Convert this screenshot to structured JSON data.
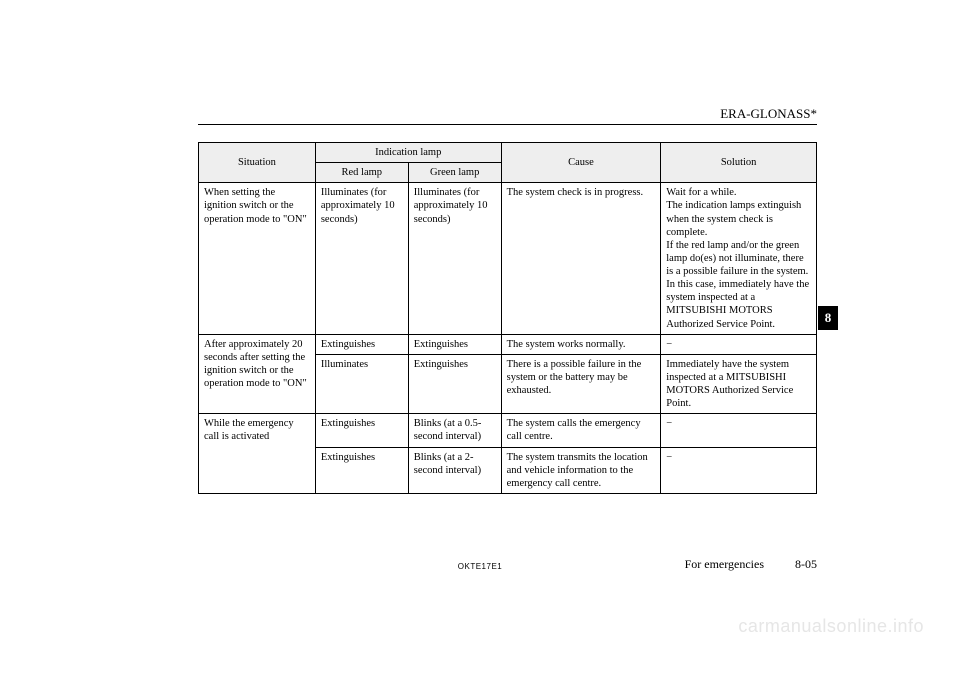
{
  "header": {
    "title": "ERA-GLONASS*"
  },
  "sectionTab": "8",
  "table": {
    "headers": {
      "situation": "Situation",
      "indication": "Indication lamp",
      "red": "Red lamp",
      "green": "Green lamp",
      "cause": "Cause",
      "solution": "Solution"
    },
    "rows": {
      "r1": {
        "situation": "When setting the ignition switch or the operation mode to \"ON\"",
        "red": "Illuminates (for approximately 10 seconds)",
        "green": "Illuminates (for approximately 10 seconds)",
        "cause": "The system check is in progress.",
        "solution": "Wait for a while.\nThe indication lamps extinguish when the system check is complete.\nIf the red lamp and/or the green lamp do(es) not illuminate, there is a possible failure in the system. In this case, immediately have the system inspected at a MITSUBISHI MOTORS Authorized Service Point."
      },
      "r2": {
        "situation": "After approximately 20 seconds after setting the ignition switch or the operation mode to \"ON\"",
        "red": "Extinguishes",
        "green": "Extinguishes",
        "cause": "The system works normally.",
        "solution": "−"
      },
      "r3": {
        "red": "Illuminates",
        "green": "Extinguishes",
        "cause": "There is a possible failure in the system or the battery may be exhausted.",
        "solution": "Immediately have the system inspected at a MITSUBISHI MOTORS Authorized Service Point."
      },
      "r4": {
        "situation": "While the emergency call is activated",
        "red": "Extinguishes",
        "green": "Blinks (at a 0.5-second interval)",
        "cause": "The system calls the emergency call centre.",
        "solution": "−"
      },
      "r5": {
        "red": "Extinguishes",
        "green": "Blinks (at a 2-second interval)",
        "cause": "The system transmits the location and vehicle information to the emergency call centre.",
        "solution": "−"
      }
    }
  },
  "footer": {
    "code": "OKTE17E1",
    "section": "For emergencies",
    "page": "8-05"
  },
  "watermark": "carmanualsonline.info"
}
